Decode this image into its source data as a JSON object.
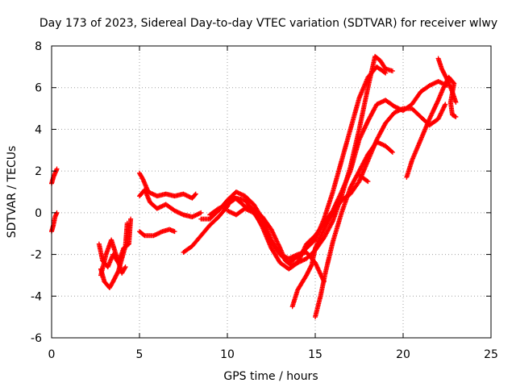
{
  "chart_data": {
    "type": "scatter",
    "title": "Day 173 of 2023, Sidereal Day-to-day VTEC variation (SDTVAR) for receiver wlwy",
    "xlabel": "GPS time / hours",
    "ylabel": "SDTVAR / TECUs",
    "xlim": [
      0,
      25
    ],
    "ylim": [
      -6,
      8
    ],
    "xticks": [
      "0",
      "5",
      "10",
      "15",
      "20",
      "25"
    ],
    "yticks": [
      "-6",
      "-4",
      "-2",
      "0",
      "2",
      "4",
      "6",
      "8"
    ],
    "grid": true,
    "marker": "plus",
    "marker_color": "#ff0000",
    "segments": [
      [
        [
          0.0,
          1.4
        ],
        [
          0.1,
          1.7
        ],
        [
          0.2,
          1.9
        ],
        [
          0.3,
          2.1
        ]
      ],
      [
        [
          0.0,
          -0.9
        ],
        [
          0.1,
          -0.6
        ],
        [
          0.2,
          -0.2
        ],
        [
          0.3,
          0.0
        ]
      ],
      [
        [
          2.8,
          -2.7
        ],
        [
          3.0,
          -3.3
        ],
        [
          3.3,
          -3.6
        ],
        [
          3.5,
          -3.3
        ],
        [
          3.8,
          -2.8
        ],
        [
          4.0,
          -2.2
        ],
        [
          4.2,
          -1.6
        ],
        [
          4.3,
          -0.5
        ]
      ],
      [
        [
          2.7,
          -1.5
        ],
        [
          2.9,
          -2.3
        ],
        [
          3.2,
          -2.6
        ],
        [
          3.5,
          -2.0
        ],
        [
          3.8,
          -2.4
        ],
        [
          4.1,
          -1.7
        ],
        [
          4.4,
          -1.5
        ],
        [
          4.5,
          -0.3
        ]
      ],
      [
        [
          2.8,
          -3.0
        ],
        [
          3.1,
          -2.0
        ],
        [
          3.4,
          -1.3
        ],
        [
          3.7,
          -2.1
        ],
        [
          4.0,
          -2.9
        ],
        [
          4.2,
          -2.6
        ]
      ],
      [
        [
          5.0,
          1.9
        ],
        [
          5.2,
          1.6
        ],
        [
          5.5,
          1.0
        ],
        [
          6.0,
          0.8
        ],
        [
          6.5,
          0.9
        ],
        [
          7.0,
          0.8
        ],
        [
          7.5,
          0.9
        ],
        [
          8.0,
          0.7
        ],
        [
          8.2,
          0.9
        ]
      ],
      [
        [
          5.0,
          0.8
        ],
        [
          5.3,
          1.1
        ],
        [
          5.6,
          0.5
        ],
        [
          6.0,
          0.2
        ],
        [
          6.5,
          0.4
        ],
        [
          7.0,
          0.1
        ],
        [
          7.5,
          -0.1
        ],
        [
          8.0,
          -0.2
        ],
        [
          8.5,
          0.0
        ]
      ],
      [
        [
          5.0,
          -0.9
        ],
        [
          5.3,
          -1.1
        ],
        [
          5.8,
          -1.1
        ],
        [
          6.3,
          -0.9
        ],
        [
          6.7,
          -0.8
        ],
        [
          7.0,
          -0.9
        ]
      ],
      [
        [
          7.5,
          -1.9
        ],
        [
          8.0,
          -1.6
        ],
        [
          8.5,
          -1.1
        ],
        [
          9.0,
          -0.6
        ],
        [
          9.5,
          -0.2
        ],
        [
          10.0,
          0.3
        ],
        [
          10.3,
          0.8
        ],
        [
          10.6,
          0.6
        ],
        [
          11.0,
          0.3
        ],
        [
          11.5,
          0.1
        ],
        [
          12.0,
          -0.2
        ],
        [
          12.5,
          -0.8
        ],
        [
          13.0,
          -1.7
        ],
        [
          13.3,
          -2.3
        ],
        [
          13.6,
          -2.5
        ],
        [
          14.0,
          -2.4
        ],
        [
          14.5,
          -2.2
        ],
        [
          15.0,
          -1.8
        ],
        [
          15.5,
          -1.2
        ],
        [
          16.0,
          -0.4
        ],
        [
          16.5,
          0.8
        ],
        [
          17.0,
          2.2
        ],
        [
          17.5,
          4.0
        ],
        [
          18.0,
          6.0
        ],
        [
          18.4,
          7.5
        ],
        [
          18.7,
          7.3
        ],
        [
          19.0,
          6.9
        ],
        [
          19.4,
          6.8
        ]
      ],
      [
        [
          8.5,
          -0.3
        ],
        [
          9.0,
          -0.3
        ],
        [
          9.5,
          0.1
        ],
        [
          10.0,
          0.6
        ],
        [
          10.5,
          1.0
        ],
        [
          11.0,
          0.8
        ],
        [
          11.5,
          0.4
        ],
        [
          12.0,
          -0.3
        ],
        [
          12.5,
          -1.3
        ],
        [
          13.0,
          -2.0
        ],
        [
          13.5,
          -2.4
        ],
        [
          14.0,
          -2.1
        ],
        [
          14.5,
          -1.7
        ],
        [
          15.0,
          -1.3
        ],
        [
          15.5,
          -0.3
        ],
        [
          16.0,
          1.0
        ],
        [
          16.5,
          2.5
        ],
        [
          17.0,
          4.0
        ],
        [
          17.5,
          5.5
        ],
        [
          18.0,
          6.5
        ],
        [
          18.5,
          7.0
        ],
        [
          19.0,
          6.7
        ]
      ],
      [
        [
          9.0,
          -0.1
        ],
        [
          9.5,
          0.2
        ],
        [
          10.0,
          0.4
        ],
        [
          10.5,
          0.7
        ],
        [
          11.0,
          0.6
        ],
        [
          11.5,
          0.1
        ],
        [
          12.0,
          -0.7
        ],
        [
          12.5,
          -1.7
        ],
        [
          13.0,
          -2.4
        ],
        [
          13.5,
          -2.7
        ],
        [
          14.0,
          -2.4
        ],
        [
          14.5,
          -1.5
        ],
        [
          15.0,
          -1.1
        ],
        [
          15.5,
          -0.5
        ],
        [
          16.0,
          0.1
        ],
        [
          16.5,
          1.0
        ],
        [
          17.0,
          2.0
        ],
        [
          17.5,
          3.5
        ],
        [
          18.0,
          4.4
        ],
        [
          18.5,
          5.2
        ],
        [
          19.0,
          5.4
        ],
        [
          19.5,
          5.1
        ],
        [
          20.0,
          4.9
        ],
        [
          20.5,
          5.2
        ],
        [
          21.0,
          5.8
        ],
        [
          21.5,
          6.1
        ],
        [
          22.0,
          6.3
        ],
        [
          22.5,
          6.1
        ]
      ],
      [
        [
          10.0,
          0.1
        ],
        [
          10.5,
          -0.1
        ],
        [
          11.0,
          0.2
        ],
        [
          11.5,
          0.0
        ],
        [
          12.0,
          -0.6
        ],
        [
          12.5,
          -1.4
        ],
        [
          13.0,
          -2.0
        ],
        [
          13.5,
          -2.2
        ],
        [
          14.0,
          -2.0
        ],
        [
          14.5,
          -1.9
        ],
        [
          15.0,
          -2.4
        ],
        [
          15.5,
          -3.3
        ]
      ],
      [
        [
          13.7,
          -4.5
        ],
        [
          14.0,
          -3.7
        ],
        [
          14.5,
          -3.0
        ],
        [
          14.8,
          -2.5
        ],
        [
          15.0,
          -1.7
        ],
        [
          15.5,
          -0.8
        ],
        [
          16.0,
          0.0
        ],
        [
          16.5,
          0.6
        ],
        [
          17.0,
          0.9
        ],
        [
          17.5,
          1.5
        ],
        [
          18.0,
          2.5
        ],
        [
          18.5,
          3.5
        ],
        [
          19.0,
          4.3
        ],
        [
          19.5,
          4.8
        ],
        [
          20.0,
          5.0
        ],
        [
          20.5,
          5.0
        ],
        [
          21.0,
          4.6
        ],
        [
          21.5,
          4.2
        ],
        [
          22.0,
          4.5
        ],
        [
          22.4,
          5.2
        ]
      ],
      [
        [
          15.0,
          -5.0
        ],
        [
          15.3,
          -4.0
        ],
        [
          15.6,
          -2.8
        ],
        [
          16.0,
          -1.4
        ],
        [
          16.5,
          0.0
        ],
        [
          17.0,
          1.2
        ],
        [
          17.5,
          2.0
        ],
        [
          18.0,
          2.8
        ],
        [
          18.5,
          3.4
        ],
        [
          19.0,
          3.2
        ],
        [
          19.4,
          2.9
        ]
      ],
      [
        [
          17.5,
          1.8
        ],
        [
          18.0,
          1.5
        ]
      ],
      [
        [
          20.2,
          1.7
        ],
        [
          20.5,
          2.5
        ],
        [
          21.0,
          3.5
        ],
        [
          21.5,
          4.5
        ],
        [
          22.0,
          5.4
        ],
        [
          22.3,
          6.0
        ],
        [
          22.6,
          6.5
        ],
        [
          22.9,
          6.2
        ],
        [
          22.7,
          5.3
        ],
        [
          22.8,
          4.7
        ],
        [
          23.0,
          4.6
        ]
      ],
      [
        [
          22.0,
          7.4
        ],
        [
          22.2,
          6.9
        ],
        [
          22.5,
          6.4
        ],
        [
          22.8,
          5.8
        ],
        [
          23.0,
          5.3
        ]
      ]
    ]
  }
}
